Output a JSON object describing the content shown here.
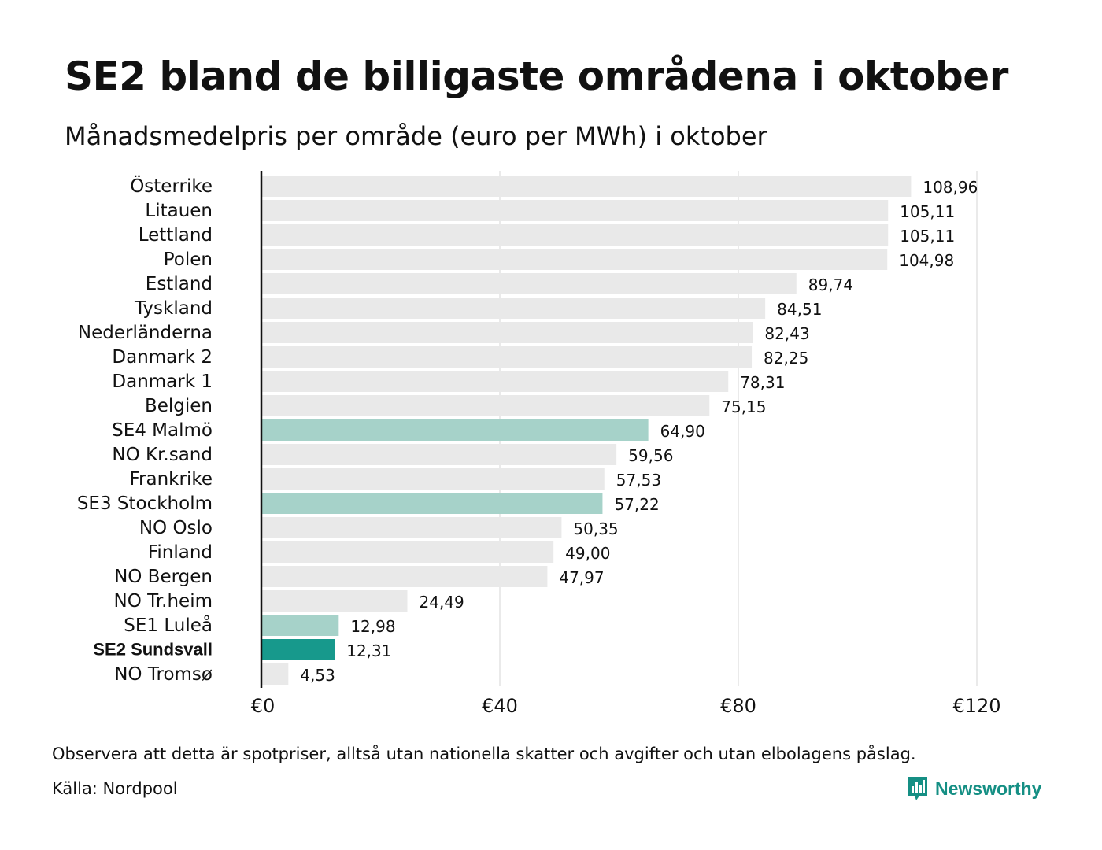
{
  "title": "SE2 bland de billigaste områdena i oktober",
  "subtitle": "Månadsmedelpris per område (euro per MWh) i oktober",
  "note": "Observera att detta är spotpriser, alltså utan nationella skatter och avgifter och utan elbolagens påslag.",
  "source": "Källa: Nordpool",
  "logo": {
    "text": "Newsworthy",
    "icon": "bar-chart-logo-icon"
  },
  "colors": {
    "default_bar": "#e9e9e9",
    "se_bar": "#a6d2c9",
    "focus_bar": "#17998c",
    "grid": "#d4d4d4",
    "axis": "#111111",
    "logo": "#158f84"
  },
  "chart_data": {
    "type": "bar",
    "orientation": "horizontal",
    "title": "SE2 bland de billigaste områdena i oktober",
    "subtitle": "Månadsmedelpris per område (euro per MWh) i oktober",
    "xlabel": "",
    "ylabel": "",
    "xlim": [
      0,
      120
    ],
    "grid": true,
    "ticks": [
      {
        "value": 0,
        "label": "€0"
      },
      {
        "value": 40,
        "label": "€40"
      },
      {
        "value": 80,
        "label": "€80"
      },
      {
        "value": 120,
        "label": "€120"
      }
    ],
    "bars": [
      {
        "category": "Österrike",
        "value": 108.96,
        "label": "108,96",
        "group": "other"
      },
      {
        "category": "Litauen",
        "value": 105.11,
        "label": "105,11",
        "group": "other"
      },
      {
        "category": "Lettland",
        "value": 105.11,
        "label": "105,11",
        "group": "other"
      },
      {
        "category": "Polen",
        "value": 104.98,
        "label": "104,98",
        "group": "other"
      },
      {
        "category": "Estland",
        "value": 89.74,
        "label": "89,74",
        "group": "other"
      },
      {
        "category": "Tyskland",
        "value": 84.51,
        "label": "84,51",
        "group": "other"
      },
      {
        "category": "Nederländerna",
        "value": 82.43,
        "label": "82,43",
        "group": "other"
      },
      {
        "category": "Danmark 2",
        "value": 82.25,
        "label": "82,25",
        "group": "other"
      },
      {
        "category": "Danmark 1",
        "value": 78.31,
        "label": "78,31",
        "group": "other"
      },
      {
        "category": "Belgien",
        "value": 75.15,
        "label": "75,15",
        "group": "other"
      },
      {
        "category": "SE4 Malmö",
        "value": 64.9,
        "label": "64,90",
        "group": "se"
      },
      {
        "category": "NO Kr.sand",
        "value": 59.56,
        "label": "59,56",
        "group": "other"
      },
      {
        "category": "Frankrike",
        "value": 57.53,
        "label": "57,53",
        "group": "other"
      },
      {
        "category": "SE3 Stockholm",
        "value": 57.22,
        "label": "57,22",
        "group": "se"
      },
      {
        "category": "NO Oslo",
        "value": 50.35,
        "label": "50,35",
        "group": "other"
      },
      {
        "category": "Finland",
        "value": 49.0,
        "label": "49,00",
        "group": "other"
      },
      {
        "category": "NO Bergen",
        "value": 47.97,
        "label": "47,97",
        "group": "other"
      },
      {
        "category": "NO Tr.heim",
        "value": 24.49,
        "label": "24,49",
        "group": "other"
      },
      {
        "category": "SE1 Luleå",
        "value": 12.98,
        "label": "12,98",
        "group": "se"
      },
      {
        "category": "SE2 Sundsvall",
        "value": 12.31,
        "label": "12,31",
        "group": "focus"
      },
      {
        "category": "NO Tromsø",
        "value": 4.53,
        "label": "4,53",
        "group": "other"
      }
    ]
  }
}
